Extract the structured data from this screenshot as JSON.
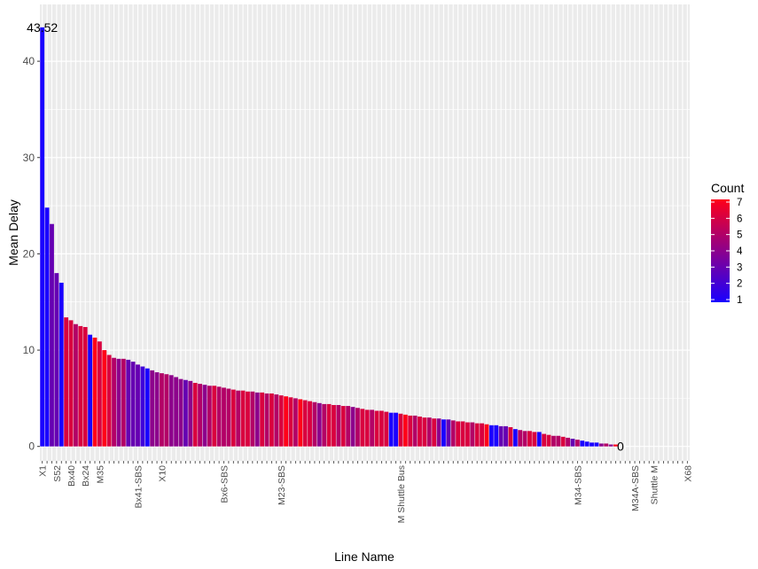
{
  "chart_data": {
    "type": "bar",
    "title": "",
    "xlabel": "Line Name",
    "ylabel": "Mean Delay",
    "ylim": [
      -1.5,
      45.9
    ],
    "yticks": [
      0,
      10,
      20,
      30,
      40
    ],
    "grid": true,
    "legend": {
      "title": "Count",
      "placement": "right",
      "min": 1,
      "max": 7,
      "ticks": [
        1,
        2,
        3,
        4,
        5,
        6,
        7
      ],
      "low_color": "#1a00ff",
      "high_color": "#ff0019"
    },
    "label_categories": [
      "X1",
      "S52",
      "Bx40",
      "Bx24",
      "M35",
      "Bx41-SBS",
      "X10",
      "Bx6-SBS",
      "M23-SBS",
      "M Shuttle Bus",
      "M34-SBS",
      "M34A-SBS",
      "Shuttle M",
      "X68"
    ],
    "label_positions": [
      0,
      3,
      6,
      9,
      12,
      20,
      25,
      38,
      50,
      75,
      112,
      124,
      128,
      135
    ],
    "category_count": 136,
    "values": [
      43.52,
      24.8,
      23.1,
      18.0,
      17.0,
      13.4,
      13.1,
      12.7,
      12.5,
      12.4,
      11.6,
      11.3,
      10.9,
      10.0,
      9.5,
      9.2,
      9.1,
      9.1,
      9.0,
      8.8,
      8.5,
      8.3,
      8.1,
      7.9,
      7.7,
      7.6,
      7.5,
      7.4,
      7.2,
      7.0,
      6.9,
      6.8,
      6.6,
      6.5,
      6.4,
      6.3,
      6.3,
      6.2,
      6.1,
      6.0,
      5.9,
      5.8,
      5.8,
      5.7,
      5.7,
      5.6,
      5.6,
      5.5,
      5.5,
      5.4,
      5.3,
      5.2,
      5.1,
      5.0,
      4.9,
      4.8,
      4.7,
      4.6,
      4.5,
      4.4,
      4.4,
      4.3,
      4.3,
      4.2,
      4.2,
      4.1,
      4.0,
      3.9,
      3.8,
      3.8,
      3.7,
      3.7,
      3.6,
      3.5,
      3.5,
      3.4,
      3.3,
      3.2,
      3.2,
      3.1,
      3.0,
      3.0,
      2.9,
      2.9,
      2.8,
      2.8,
      2.7,
      2.6,
      2.6,
      2.5,
      2.5,
      2.4,
      2.4,
      2.3,
      2.2,
      2.2,
      2.1,
      2.1,
      2.0,
      1.8,
      1.7,
      1.6,
      1.6,
      1.5,
      1.5,
      1.3,
      1.2,
      1.1,
      1.1,
      1.0,
      0.9,
      0.8,
      0.7,
      0.6,
      0.5,
      0.4,
      0.4,
      0.3,
      0.3,
      0.2,
      0.2,
      0,
      0,
      0,
      0,
      0,
      0,
      0,
      0,
      0,
      0,
      0,
      0,
      0,
      0,
      0
    ],
    "counts": [
      1,
      1,
      3,
      3,
      1,
      6,
      6,
      5,
      6,
      6,
      1,
      7,
      6,
      7,
      6,
      5,
      4,
      5,
      3,
      3,
      3,
      2,
      1,
      4,
      4,
      5,
      5,
      4,
      4,
      4,
      3,
      4,
      6,
      5,
      4,
      5,
      6,
      5,
      5,
      5,
      6,
      5,
      6,
      6,
      5,
      4,
      6,
      5,
      6,
      5,
      6,
      7,
      6,
      5,
      7,
      6,
      6,
      5,
      4,
      5,
      6,
      6,
      5,
      6,
      5,
      4,
      5,
      6,
      6,
      5,
      6,
      6,
      6,
      1,
      1,
      6,
      7,
      6,
      5,
      6,
      6,
      5,
      6,
      4,
      1,
      3,
      5,
      6,
      6,
      6,
      5,
      6,
      6,
      7,
      1,
      1,
      3,
      3,
      6,
      1,
      5,
      5,
      6,
      6,
      1,
      6,
      6,
      5,
      5,
      6,
      5,
      3,
      5,
      1,
      1,
      1,
      1,
      4,
      5,
      4,
      7,
      1,
      1,
      1,
      1,
      1,
      1,
      1,
      1,
      1,
      1,
      1,
      1,
      1,
      1,
      1
    ],
    "annotations": [
      {
        "text": "43.52",
        "x_index": 0,
        "y": 43.52
      },
      {
        "text": "0",
        "x_index": 121,
        "y": 0
      }
    ]
  }
}
